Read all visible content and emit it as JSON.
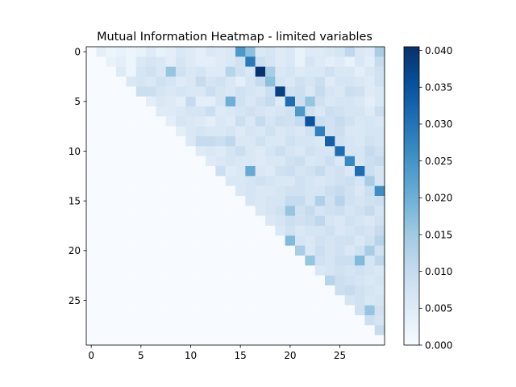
{
  "chart_data": [
    {
      "type": "heatmap",
      "title": "Mutual Information Heatmap - limited variables",
      "xlabel": "",
      "ylabel": "",
      "size": 30,
      "xticks": [
        0,
        5,
        10,
        15,
        20,
        25
      ],
      "yticks": [
        0,
        5,
        10,
        15,
        20,
        25
      ],
      "x_range": [
        -0.5,
        29.5
      ],
      "y_range": [
        -0.5,
        29.5
      ],
      "y_inverted": true,
      "grid": false,
      "colormap": "Blues",
      "vmin": 0.0,
      "vmax": 0.0405,
      "colorbar": {
        "ticks": [
          0.0,
          0.005,
          0.01,
          0.015,
          0.02,
          0.025,
          0.03,
          0.035,
          0.04
        ],
        "tick_labels": [
          "0.000",
          "0.005",
          "0.010",
          "0.015",
          "0.020",
          "0.025",
          "0.030",
          "0.035",
          "0.040"
        ],
        "placement": "right"
      },
      "layout": "upper-triangle (cells with column > row filled, rest 0)",
      "values": [
        [
          0,
          0.004,
          0.002,
          0.003,
          0.002,
          0.003,
          0.005,
          0.003,
          0.004,
          0.006,
          0.005,
          0.004,
          0.006,
          0.005,
          0.006,
          0.024,
          0.017,
          0.006,
          0.007,
          0.005,
          0.006,
          0.003,
          0.005,
          0.005,
          0.006,
          0.007,
          0.011,
          0.006,
          0.005,
          0.014
        ],
        [
          0,
          0,
          0.003,
          0.004,
          0.002,
          0.006,
          0.007,
          0.006,
          0.004,
          0.007,
          0.005,
          0.004,
          0.004,
          0.005,
          0.006,
          0.008,
          0.029,
          0.009,
          0.007,
          0.005,
          0.006,
          0.003,
          0.007,
          0.005,
          0.004,
          0.005,
          0.003,
          0.006,
          0.004,
          0.01
        ],
        [
          0,
          0,
          0,
          0.005,
          0.002,
          0.007,
          0.008,
          0.006,
          0.016,
          0.008,
          0.006,
          0.007,
          0.005,
          0.005,
          0.012,
          0.008,
          0.006,
          0.04,
          0.014,
          0.006,
          0.007,
          0.005,
          0.006,
          0.006,
          0.008,
          0.006,
          0.006,
          0.004,
          0.006,
          0.008
        ],
        [
          0,
          0,
          0,
          0,
          0.006,
          0.007,
          0.006,
          0.008,
          0.007,
          0.005,
          0.006,
          0.01,
          0.007,
          0.008,
          0.006,
          0.004,
          0.007,
          0.01,
          0.017,
          0.007,
          0.006,
          0.008,
          0.007,
          0.009,
          0.005,
          0.007,
          0.007,
          0.006,
          0.005,
          0.008
        ],
        [
          0,
          0,
          0,
          0,
          0,
          0.009,
          0.009,
          0.007,
          0.006,
          0.007,
          0.006,
          0.006,
          0.009,
          0.007,
          0.006,
          0.008,
          0.007,
          0.006,
          0.009,
          0.038,
          0.008,
          0.009,
          0.006,
          0.01,
          0.007,
          0.006,
          0.009,
          0.008,
          0.005,
          0.006
        ],
        [
          0,
          0,
          0,
          0,
          0,
          0,
          0.004,
          0.006,
          0.005,
          0.004,
          0.01,
          0.004,
          0.004,
          0.007,
          0.02,
          0.008,
          0.006,
          0.008,
          0.01,
          0.005,
          0.031,
          0.009,
          0.016,
          0.008,
          0.006,
          0.007,
          0.007,
          0.006,
          0.004,
          0.006
        ],
        [
          0,
          0,
          0,
          0,
          0,
          0,
          0,
          0.005,
          0.005,
          0.006,
          0.007,
          0.007,
          0.009,
          0.005,
          0.006,
          0.007,
          0.008,
          0.007,
          0.006,
          0.007,
          0.008,
          0.024,
          0.008,
          0.006,
          0.009,
          0.008,
          0.007,
          0.007,
          0.005,
          0.009
        ],
        [
          0,
          0,
          0,
          0,
          0,
          0,
          0,
          0,
          0.004,
          0.007,
          0.006,
          0.005,
          0.004,
          0.006,
          0.005,
          0.009,
          0.006,
          0.01,
          0.007,
          0.009,
          0.008,
          0.01,
          0.035,
          0.009,
          0.008,
          0.01,
          0.008,
          0.006,
          0.007,
          0.006
        ],
        [
          0,
          0,
          0,
          0,
          0,
          0,
          0,
          0,
          0,
          0.004,
          0.006,
          0.007,
          0.006,
          0.006,
          0.007,
          0.005,
          0.007,
          0.006,
          0.008,
          0.006,
          0.007,
          0.006,
          0.008,
          0.028,
          0.008,
          0.009,
          0.006,
          0.006,
          0.007,
          0.007
        ],
        [
          0,
          0,
          0,
          0,
          0,
          0,
          0,
          0,
          0,
          0,
          0.006,
          0.01,
          0.01,
          0.009,
          0.011,
          0.006,
          0.006,
          0.008,
          0.006,
          0.006,
          0.008,
          0.007,
          0.007,
          0.006,
          0.033,
          0.008,
          0.007,
          0.006,
          0.008,
          0.007
        ],
        [
          0,
          0,
          0,
          0,
          0,
          0,
          0,
          0,
          0,
          0,
          0,
          0.005,
          0.006,
          0.005,
          0.007,
          0.009,
          0.006,
          0.005,
          0.007,
          0.009,
          0.007,
          0.006,
          0.008,
          0.007,
          0.007,
          0.031,
          0.007,
          0.007,
          0.01,
          0.008
        ],
        [
          0,
          0,
          0,
          0,
          0,
          0,
          0,
          0,
          0,
          0,
          0,
          0,
          0.005,
          0.006,
          0.007,
          0.006,
          0.006,
          0.005,
          0.006,
          0.006,
          0.008,
          0.009,
          0.006,
          0.007,
          0.009,
          0.006,
          0.027,
          0.007,
          0.009,
          0.01
        ],
        [
          0,
          0,
          0,
          0,
          0,
          0,
          0,
          0,
          0,
          0,
          0,
          0,
          0,
          0.009,
          0.005,
          0.006,
          0.021,
          0.006,
          0.005,
          0.008,
          0.009,
          0.007,
          0.008,
          0.01,
          0.007,
          0.008,
          0.006,
          0.031,
          0.009,
          0.007
        ],
        [
          0,
          0,
          0,
          0,
          0,
          0,
          0,
          0,
          0,
          0,
          0,
          0,
          0,
          0,
          0.006,
          0.006,
          0.007,
          0.008,
          0.007,
          0.006,
          0.006,
          0.008,
          0.007,
          0.006,
          0.007,
          0.008,
          0.009,
          0.007,
          0.014,
          0.007
        ],
        [
          0,
          0,
          0,
          0,
          0,
          0,
          0,
          0,
          0,
          0,
          0,
          0,
          0,
          0,
          0,
          0.006,
          0.007,
          0.006,
          0.006,
          0.007,
          0.008,
          0.008,
          0.007,
          0.007,
          0.009,
          0.01,
          0.008,
          0.006,
          0.009,
          0.026
        ],
        [
          0,
          0,
          0,
          0,
          0,
          0,
          0,
          0,
          0,
          0,
          0,
          0,
          0,
          0,
          0,
          0,
          0.007,
          0.006,
          0.007,
          0.007,
          0.01,
          0.01,
          0.007,
          0.013,
          0.008,
          0.012,
          0.008,
          0.007,
          0.008,
          0.009
        ],
        [
          0,
          0,
          0,
          0,
          0,
          0,
          0,
          0,
          0,
          0,
          0,
          0,
          0,
          0,
          0,
          0,
          0,
          0.006,
          0.007,
          0.008,
          0.016,
          0.008,
          0.01,
          0.007,
          0.008,
          0.009,
          0.007,
          0.008,
          0.01,
          0.007
        ],
        [
          0,
          0,
          0,
          0,
          0,
          0,
          0,
          0,
          0,
          0,
          0,
          0,
          0,
          0,
          0,
          0,
          0,
          0,
          0.006,
          0.007,
          0.009,
          0.008,
          0.009,
          0.011,
          0.007,
          0.006,
          0.008,
          0.007,
          0.006,
          0.008
        ],
        [
          0,
          0,
          0,
          0,
          0,
          0,
          0,
          0,
          0,
          0,
          0,
          0,
          0,
          0,
          0,
          0,
          0,
          0,
          0,
          0.006,
          0.008,
          0.006,
          0.007,
          0.007,
          0.008,
          0.006,
          0.007,
          0.008,
          0.007,
          0.01
        ],
        [
          0,
          0,
          0,
          0,
          0,
          0,
          0,
          0,
          0,
          0,
          0,
          0,
          0,
          0,
          0,
          0,
          0,
          0,
          0,
          0,
          0.018,
          0.007,
          0.006,
          0.008,
          0.007,
          0.008,
          0.008,
          0.006,
          0.008,
          0.012
        ],
        [
          0,
          0,
          0,
          0,
          0,
          0,
          0,
          0,
          0,
          0,
          0,
          0,
          0,
          0,
          0,
          0,
          0,
          0,
          0,
          0,
          0,
          0.014,
          0.006,
          0.009,
          0.007,
          0.008,
          0.006,
          0.008,
          0.014,
          0.008
        ],
        [
          0,
          0,
          0,
          0,
          0,
          0,
          0,
          0,
          0,
          0,
          0,
          0,
          0,
          0,
          0,
          0,
          0,
          0,
          0,
          0,
          0,
          0,
          0.016,
          0.008,
          0.007,
          0.009,
          0.009,
          0.018,
          0.007,
          0.011
        ],
        [
          0,
          0,
          0,
          0,
          0,
          0,
          0,
          0,
          0,
          0,
          0,
          0,
          0,
          0,
          0,
          0,
          0,
          0,
          0,
          0,
          0,
          0,
          0,
          0.006,
          0.007,
          0.008,
          0.007,
          0.008,
          0.007,
          0.006
        ],
        [
          0,
          0,
          0,
          0,
          0,
          0,
          0,
          0,
          0,
          0,
          0,
          0,
          0,
          0,
          0,
          0,
          0,
          0,
          0,
          0,
          0,
          0,
          0,
          0,
          0.012,
          0.009,
          0.008,
          0.007,
          0.006,
          0.007
        ],
        [
          0,
          0,
          0,
          0,
          0,
          0,
          0,
          0,
          0,
          0,
          0,
          0,
          0,
          0,
          0,
          0,
          0,
          0,
          0,
          0,
          0,
          0,
          0,
          0,
          0,
          0.009,
          0.01,
          0.008,
          0.007,
          0.006
        ],
        [
          0,
          0,
          0,
          0,
          0,
          0,
          0,
          0,
          0,
          0,
          0,
          0,
          0,
          0,
          0,
          0,
          0,
          0,
          0,
          0,
          0,
          0,
          0,
          0,
          0,
          0,
          0.007,
          0.008,
          0.006,
          0.007
        ],
        [
          0,
          0,
          0,
          0,
          0,
          0,
          0,
          0,
          0,
          0,
          0,
          0,
          0,
          0,
          0,
          0,
          0,
          0,
          0,
          0,
          0,
          0,
          0,
          0,
          0,
          0,
          0,
          0.008,
          0.016,
          0.008
        ],
        [
          0,
          0,
          0,
          0,
          0,
          0,
          0,
          0,
          0,
          0,
          0,
          0,
          0,
          0,
          0,
          0,
          0,
          0,
          0,
          0,
          0,
          0,
          0,
          0,
          0,
          0,
          0,
          0,
          0.009,
          0.007
        ],
        [
          0,
          0,
          0,
          0,
          0,
          0,
          0,
          0,
          0,
          0,
          0,
          0,
          0,
          0,
          0,
          0,
          0,
          0,
          0,
          0,
          0,
          0,
          0,
          0,
          0,
          0,
          0,
          0,
          0,
          0.01
        ],
        [
          0,
          0,
          0,
          0,
          0,
          0,
          0,
          0,
          0,
          0,
          0,
          0,
          0,
          0,
          0,
          0,
          0,
          0,
          0,
          0,
          0,
          0,
          0,
          0,
          0,
          0,
          0,
          0,
          0,
          0
        ]
      ]
    }
  ]
}
